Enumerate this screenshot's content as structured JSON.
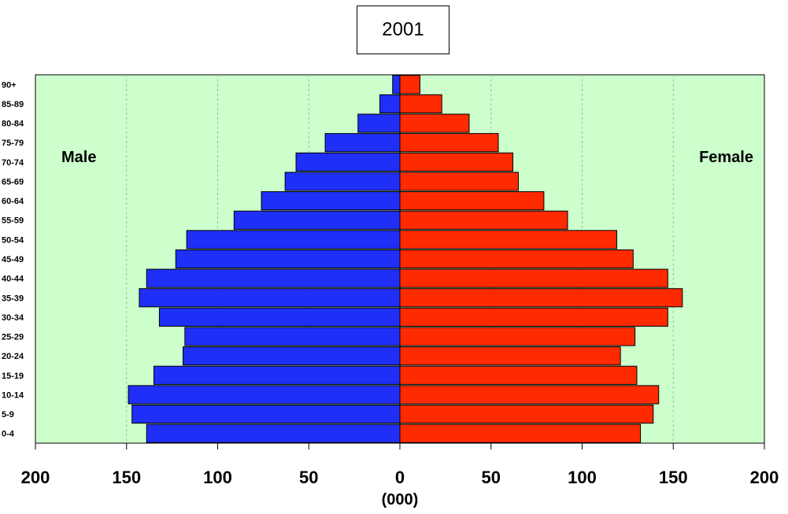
{
  "chart_data": {
    "type": "bar",
    "orientation": "horizontal-pyramid",
    "title": "2001",
    "xlabel": "(000)",
    "categories": [
      "0-4",
      "5-9",
      "10-14",
      "15-19",
      "20-24",
      "25-29",
      "30-34",
      "35-39",
      "40-44",
      "45-49",
      "50-54",
      "55-59",
      "60-64",
      "65-69",
      "70-74",
      "75-79",
      "80-84",
      "85-89",
      "90+"
    ],
    "series": [
      {
        "name": "Male",
        "color": "#1f2ff7",
        "values": [
          139,
          147,
          149,
          135,
          119,
          118,
          132,
          143,
          139,
          123,
          117,
          91,
          76,
          63,
          57,
          41,
          23,
          11,
          4
        ]
      },
      {
        "name": "Female",
        "color": "#ff2a00",
        "values": [
          132,
          139,
          142,
          130,
          121,
          129,
          147,
          155,
          147,
          128,
          119,
          92,
          79,
          65,
          62,
          54,
          38,
          23,
          11
        ]
      }
    ],
    "xlim": [
      -200,
      200
    ],
    "xticks": [
      200,
      150,
      100,
      50,
      0,
      50,
      100,
      150,
      200
    ],
    "grid": true,
    "plot_background": "#ccffcc"
  }
}
